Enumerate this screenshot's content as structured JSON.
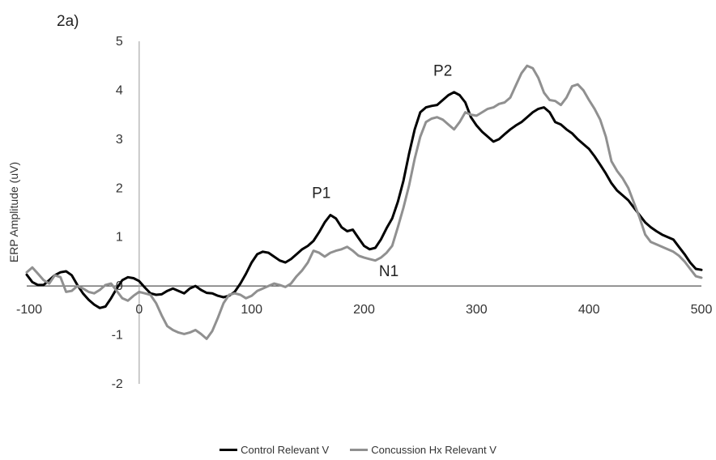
{
  "chart_data": {
    "type": "line",
    "panel_label": "2a)",
    "ylabel": "ERP Amplitude (uV)",
    "xlabel": "",
    "xlim": [
      -100,
      500
    ],
    "ylim": [
      -2,
      5
    ],
    "x_ticks": [
      -100,
      0,
      100,
      200,
      300,
      400,
      500
    ],
    "y_ticks": [
      -2,
      -1,
      0,
      1,
      2,
      3,
      4,
      5
    ],
    "legend_position": "bottom",
    "annotations": [
      {
        "text": "P1",
        "x": 162,
        "y": 1.8
      },
      {
        "text": "N1",
        "x": 222,
        "y": 0.2
      },
      {
        "text": "P2",
        "x": 270,
        "y": 4.3
      }
    ],
    "series": [
      {
        "name": "Control Relevant V",
        "color": "#000000",
        "points": [
          [
            -100,
            0.23
          ],
          [
            -95,
            0.08
          ],
          [
            -90,
            0.02
          ],
          [
            -85,
            0.02
          ],
          [
            -80,
            0.12
          ],
          [
            -75,
            0.22
          ],
          [
            -70,
            0.28
          ],
          [
            -65,
            0.3
          ],
          [
            -60,
            0.22
          ],
          [
            -55,
            0.02
          ],
          [
            -50,
            -0.15
          ],
          [
            -45,
            -0.28
          ],
          [
            -40,
            -0.38
          ],
          [
            -35,
            -0.45
          ],
          [
            -30,
            -0.42
          ],
          [
            -25,
            -0.25
          ],
          [
            -20,
            -0.05
          ],
          [
            -15,
            0.12
          ],
          [
            -10,
            0.18
          ],
          [
            -5,
            0.16
          ],
          [
            0,
            0.1
          ],
          [
            5,
            -0.03
          ],
          [
            10,
            -0.15
          ],
          [
            15,
            -0.18
          ],
          [
            20,
            -0.17
          ],
          [
            25,
            -0.1
          ],
          [
            30,
            -0.05
          ],
          [
            35,
            -0.1
          ],
          [
            40,
            -0.15
          ],
          [
            45,
            -0.05
          ],
          [
            50,
            0.0
          ],
          [
            55,
            -0.08
          ],
          [
            60,
            -0.14
          ],
          [
            65,
            -0.15
          ],
          [
            70,
            -0.2
          ],
          [
            75,
            -0.23
          ],
          [
            80,
            -0.2
          ],
          [
            85,
            -0.12
          ],
          [
            90,
            0.05
          ],
          [
            95,
            0.25
          ],
          [
            100,
            0.48
          ],
          [
            105,
            0.65
          ],
          [
            110,
            0.7
          ],
          [
            115,
            0.68
          ],
          [
            120,
            0.6
          ],
          [
            125,
            0.52
          ],
          [
            130,
            0.48
          ],
          [
            135,
            0.55
          ],
          [
            140,
            0.65
          ],
          [
            145,
            0.75
          ],
          [
            150,
            0.82
          ],
          [
            155,
            0.92
          ],
          [
            160,
            1.1
          ],
          [
            165,
            1.3
          ],
          [
            170,
            1.45
          ],
          [
            175,
            1.38
          ],
          [
            180,
            1.2
          ],
          [
            185,
            1.12
          ],
          [
            190,
            1.15
          ],
          [
            195,
            0.98
          ],
          [
            200,
            0.82
          ],
          [
            205,
            0.75
          ],
          [
            210,
            0.78
          ],
          [
            215,
            0.95
          ],
          [
            220,
            1.18
          ],
          [
            225,
            1.38
          ],
          [
            230,
            1.72
          ],
          [
            235,
            2.15
          ],
          [
            240,
            2.7
          ],
          [
            245,
            3.2
          ],
          [
            250,
            3.55
          ],
          [
            255,
            3.65
          ],
          [
            260,
            3.68
          ],
          [
            265,
            3.7
          ],
          [
            270,
            3.8
          ],
          [
            275,
            3.9
          ],
          [
            280,
            3.96
          ],
          [
            285,
            3.9
          ],
          [
            290,
            3.75
          ],
          [
            295,
            3.45
          ],
          [
            300,
            3.28
          ],
          [
            305,
            3.15
          ],
          [
            310,
            3.05
          ],
          [
            315,
            2.95
          ],
          [
            320,
            3.0
          ],
          [
            325,
            3.1
          ],
          [
            330,
            3.2
          ],
          [
            335,
            3.28
          ],
          [
            340,
            3.35
          ],
          [
            345,
            3.45
          ],
          [
            350,
            3.55
          ],
          [
            355,
            3.62
          ],
          [
            360,
            3.65
          ],
          [
            365,
            3.55
          ],
          [
            370,
            3.35
          ],
          [
            375,
            3.3
          ],
          [
            380,
            3.2
          ],
          [
            385,
            3.12
          ],
          [
            390,
            3.0
          ],
          [
            395,
            2.9
          ],
          [
            400,
            2.8
          ],
          [
            405,
            2.65
          ],
          [
            410,
            2.48
          ],
          [
            415,
            2.3
          ],
          [
            420,
            2.1
          ],
          [
            425,
            1.95
          ],
          [
            430,
            1.85
          ],
          [
            435,
            1.75
          ],
          [
            440,
            1.6
          ],
          [
            445,
            1.45
          ],
          [
            450,
            1.3
          ],
          [
            455,
            1.2
          ],
          [
            460,
            1.12
          ],
          [
            465,
            1.05
          ],
          [
            470,
            1.0
          ],
          [
            475,
            0.95
          ],
          [
            480,
            0.8
          ],
          [
            485,
            0.65
          ],
          [
            490,
            0.48
          ],
          [
            495,
            0.35
          ],
          [
            500,
            0.33
          ]
        ]
      },
      {
        "name": "Concussion  Hx Relevant V",
        "color": "#909090",
        "points": [
          [
            -100,
            0.28
          ],
          [
            -95,
            0.38
          ],
          [
            -90,
            0.25
          ],
          [
            -85,
            0.12
          ],
          [
            -80,
            0.05
          ],
          [
            -75,
            0.22
          ],
          [
            -70,
            0.18
          ],
          [
            -65,
            -0.12
          ],
          [
            -60,
            -0.1
          ],
          [
            -55,
            0.0
          ],
          [
            -50,
            -0.05
          ],
          [
            -45,
            -0.12
          ],
          [
            -40,
            -0.15
          ],
          [
            -35,
            -0.08
          ],
          [
            -30,
            0.02
          ],
          [
            -25,
            0.05
          ],
          [
            -20,
            -0.1
          ],
          [
            -15,
            -0.25
          ],
          [
            -10,
            -0.3
          ],
          [
            -5,
            -0.2
          ],
          [
            0,
            -0.12
          ],
          [
            5,
            -0.15
          ],
          [
            10,
            -0.18
          ],
          [
            15,
            -0.35
          ],
          [
            20,
            -0.6
          ],
          [
            25,
            -0.82
          ],
          [
            30,
            -0.9
          ],
          [
            35,
            -0.95
          ],
          [
            40,
            -0.98
          ],
          [
            45,
            -0.95
          ],
          [
            50,
            -0.9
          ],
          [
            55,
            -0.98
          ],
          [
            60,
            -1.08
          ],
          [
            65,
            -0.92
          ],
          [
            70,
            -0.65
          ],
          [
            75,
            -0.35
          ],
          [
            80,
            -0.18
          ],
          [
            85,
            -0.15
          ],
          [
            90,
            -0.18
          ],
          [
            95,
            -0.25
          ],
          [
            100,
            -0.2
          ],
          [
            105,
            -0.1
          ],
          [
            110,
            -0.05
          ],
          [
            115,
            0.0
          ],
          [
            120,
            0.05
          ],
          [
            125,
            0.02
          ],
          [
            130,
            -0.02
          ],
          [
            135,
            0.05
          ],
          [
            140,
            0.2
          ],
          [
            145,
            0.32
          ],
          [
            150,
            0.48
          ],
          [
            155,
            0.72
          ],
          [
            160,
            0.68
          ],
          [
            165,
            0.6
          ],
          [
            170,
            0.68
          ],
          [
            175,
            0.72
          ],
          [
            180,
            0.75
          ],
          [
            185,
            0.8
          ],
          [
            190,
            0.72
          ],
          [
            195,
            0.62
          ],
          [
            200,
            0.58
          ],
          [
            205,
            0.55
          ],
          [
            210,
            0.52
          ],
          [
            215,
            0.58
          ],
          [
            220,
            0.68
          ],
          [
            225,
            0.82
          ],
          [
            230,
            1.2
          ],
          [
            235,
            1.6
          ],
          [
            240,
            2.05
          ],
          [
            245,
            2.6
          ],
          [
            250,
            3.05
          ],
          [
            255,
            3.35
          ],
          [
            260,
            3.42
          ],
          [
            265,
            3.45
          ],
          [
            270,
            3.4
          ],
          [
            275,
            3.3
          ],
          [
            280,
            3.2
          ],
          [
            285,
            3.35
          ],
          [
            290,
            3.55
          ],
          [
            295,
            3.5
          ],
          [
            300,
            3.48
          ],
          [
            305,
            3.55
          ],
          [
            310,
            3.62
          ],
          [
            315,
            3.65
          ],
          [
            320,
            3.72
          ],
          [
            325,
            3.75
          ],
          [
            330,
            3.85
          ],
          [
            335,
            4.1
          ],
          [
            340,
            4.35
          ],
          [
            345,
            4.5
          ],
          [
            350,
            4.45
          ],
          [
            355,
            4.25
          ],
          [
            360,
            3.95
          ],
          [
            365,
            3.8
          ],
          [
            370,
            3.78
          ],
          [
            375,
            3.7
          ],
          [
            380,
            3.85
          ],
          [
            385,
            4.08
          ],
          [
            390,
            4.12
          ],
          [
            395,
            4.0
          ],
          [
            400,
            3.8
          ],
          [
            405,
            3.62
          ],
          [
            410,
            3.4
          ],
          [
            415,
            3.05
          ],
          [
            420,
            2.55
          ],
          [
            425,
            2.35
          ],
          [
            430,
            2.2
          ],
          [
            435,
            2.0
          ],
          [
            440,
            1.7
          ],
          [
            445,
            1.4
          ],
          [
            450,
            1.05
          ],
          [
            455,
            0.9
          ],
          [
            460,
            0.85
          ],
          [
            465,
            0.8
          ],
          [
            470,
            0.75
          ],
          [
            475,
            0.7
          ],
          [
            480,
            0.62
          ],
          [
            485,
            0.5
          ],
          [
            490,
            0.35
          ],
          [
            495,
            0.2
          ],
          [
            500,
            0.17
          ]
        ]
      }
    ]
  }
}
